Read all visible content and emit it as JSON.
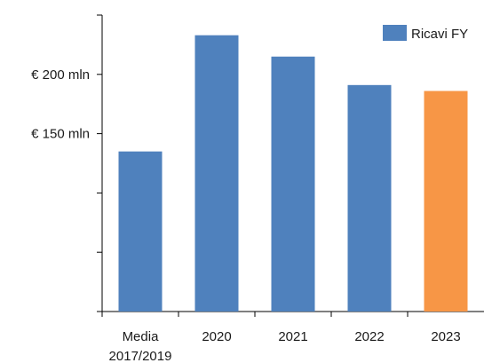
{
  "chart_data": {
    "type": "bar",
    "categories": [
      "Media 2017/2019",
      "2020",
      "2021",
      "2022",
      "2023"
    ],
    "category_lines": [
      [
        "Media",
        "2017/2019"
      ],
      [
        "2020"
      ],
      [
        "2021"
      ],
      [
        "2022"
      ],
      [
        "2023"
      ]
    ],
    "series": [
      {
        "name": "Ricavi FY",
        "values": [
          135,
          233,
          215,
          191,
          186
        ]
      }
    ],
    "highlight_index": 4,
    "ylim": [
      0,
      250
    ],
    "y_ticks": [
      0,
      50,
      100,
      150,
      200,
      250
    ],
    "y_tick_labels": [
      "",
      "",
      "",
      "€ 150 mln",
      "€ 200 mln",
      ""
    ],
    "legend_position": "top-right",
    "grid": false,
    "colors": {
      "series": "#4f81bd",
      "highlight": "#f79646",
      "axis": "#000000",
      "text": "#1a1a1a"
    }
  }
}
